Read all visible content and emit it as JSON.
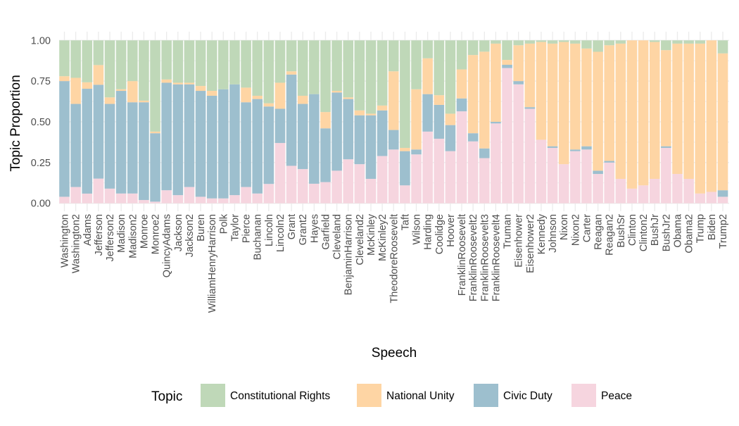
{
  "chart_data": {
    "type": "bar",
    "stacked": true,
    "title": "",
    "xlabel": "Speech",
    "ylabel": "Topic Proportion",
    "ylim": [
      0,
      1
    ],
    "yticks": [
      "0.00",
      "0.25",
      "0.50",
      "0.75",
      "1.00"
    ],
    "grid": true,
    "legend": {
      "title": "Topic",
      "placement": "bottom"
    },
    "categories": [
      "Washington",
      "Washington2",
      "Adams",
      "Jefferson",
      "Jefferson2",
      "Madison",
      "Madison2",
      "Monroe",
      "Monroe2",
      "QuincyAdams",
      "Jackson",
      "Jackson2",
      "Buren",
      "WilliamHenryHarrison",
      "Polk",
      "Taylor",
      "Pierce",
      "Buchanan",
      "Lincoln",
      "Lincoln2",
      "Grant",
      "Grant2",
      "Hayes",
      "Garfield",
      "Cleveland",
      "BenjaminHarrison",
      "Cleveland2",
      "McKinley",
      "McKinley2",
      "TheodoreRoosevelt",
      "Taft",
      "Wilson",
      "Harding",
      "Coolidge",
      "Hoover",
      "FranklinRoosevelt",
      "FranklinRoosevelt2",
      "FranklinRoosevelt3",
      "FranklinRoosevelt4",
      "Truman",
      "Eisenhower",
      "Eisenhower2",
      "Kennedy",
      "Johnson",
      "Nixon",
      "Nixon2",
      "Carter",
      "Reagan",
      "Reagan2",
      "BushSr",
      "Clinton",
      "Clinton2",
      "BushJr",
      "BushJr2",
      "Obama",
      "Obama2",
      "Trump",
      "Biden",
      "Trump2"
    ],
    "series": [
      {
        "name": "Peace",
        "color": "#f6d5df",
        "values": [
          0.04,
          0.1,
          0.06,
          0.15,
          0.09,
          0.06,
          0.06,
          0.02,
          0.01,
          0.08,
          0.05,
          0.1,
          0.04,
          0.03,
          0.03,
          0.05,
          0.1,
          0.06,
          0.12,
          0.37,
          0.23,
          0.21,
          0.12,
          0.13,
          0.2,
          0.27,
          0.24,
          0.15,
          0.29,
          0.33,
          0.11,
          0.3,
          0.44,
          0.4,
          0.32,
          0.57,
          0.38,
          0.28,
          0.49,
          0.83,
          0.73,
          0.58,
          0.39,
          0.34,
          0.24,
          0.32,
          0.33,
          0.18,
          0.25,
          0.15,
          0.09,
          0.11,
          0.15,
          0.34,
          0.18,
          0.15,
          0.06,
          0.07,
          0.04
        ]
      },
      {
        "name": "Civic Duty",
        "color": "#9dbfce",
        "values": [
          0.71,
          0.51,
          0.65,
          0.57,
          0.52,
          0.63,
          0.56,
          0.6,
          0.42,
          0.66,
          0.68,
          0.63,
          0.65,
          0.63,
          0.67,
          0.68,
          0.52,
          0.58,
          0.48,
          0.21,
          0.56,
          0.4,
          0.55,
          0.33,
          0.48,
          0.37,
          0.3,
          0.39,
          0.28,
          0.12,
          0.21,
          0.03,
          0.23,
          0.21,
          0.16,
          0.08,
          0.05,
          0.06,
          0.01,
          0.02,
          0.02,
          0.01,
          0.0,
          0.01,
          0.0,
          0.01,
          0.02,
          0.02,
          0.01,
          0.0,
          0.0,
          0.0,
          0.0,
          0.01,
          0.0,
          0.0,
          0.0,
          0.0,
          0.04
        ]
      },
      {
        "name": "National Unity",
        "color": "#fed5a4",
        "values": [
          0.03,
          0.16,
          0.04,
          0.12,
          0.04,
          0.01,
          0.13,
          0.01,
          0.01,
          0.02,
          0.01,
          0.01,
          0.03,
          0.03,
          0.0,
          0.0,
          0.09,
          0.02,
          0.02,
          0.16,
          0.02,
          0.05,
          0.0,
          0.1,
          0.01,
          0.01,
          0.03,
          0.01,
          0.03,
          0.36,
          0.02,
          0.37,
          0.22,
          0.06,
          0.07,
          0.18,
          0.48,
          0.6,
          0.48,
          0.03,
          0.22,
          0.39,
          0.6,
          0.63,
          0.75,
          0.65,
          0.6,
          0.73,
          0.71,
          0.83,
          0.91,
          0.89,
          0.84,
          0.59,
          0.8,
          0.83,
          0.92,
          0.93,
          0.84
        ]
      },
      {
        "name": "Constitutional Rights",
        "color": "#bfd8b8",
        "values": [
          0.22,
          0.23,
          0.26,
          0.15,
          0.35,
          0.3,
          0.25,
          0.37,
          0.56,
          0.24,
          0.26,
          0.26,
          0.28,
          0.31,
          0.3,
          0.27,
          0.29,
          0.34,
          0.39,
          0.26,
          0.19,
          0.34,
          0.33,
          0.44,
          0.31,
          0.35,
          0.43,
          0.45,
          0.4,
          0.19,
          0.66,
          0.3,
          0.11,
          0.34,
          0.45,
          0.18,
          0.09,
          0.07,
          0.02,
          0.12,
          0.03,
          0.02,
          0.01,
          0.02,
          0.01,
          0.02,
          0.05,
          0.07,
          0.03,
          0.02,
          0.0,
          0.0,
          0.01,
          0.06,
          0.02,
          0.02,
          0.02,
          0.0,
          0.08
        ]
      }
    ],
    "legend_order": [
      "Constitutional Rights",
      "National Unity",
      "Civic Duty",
      "Peace"
    ]
  }
}
